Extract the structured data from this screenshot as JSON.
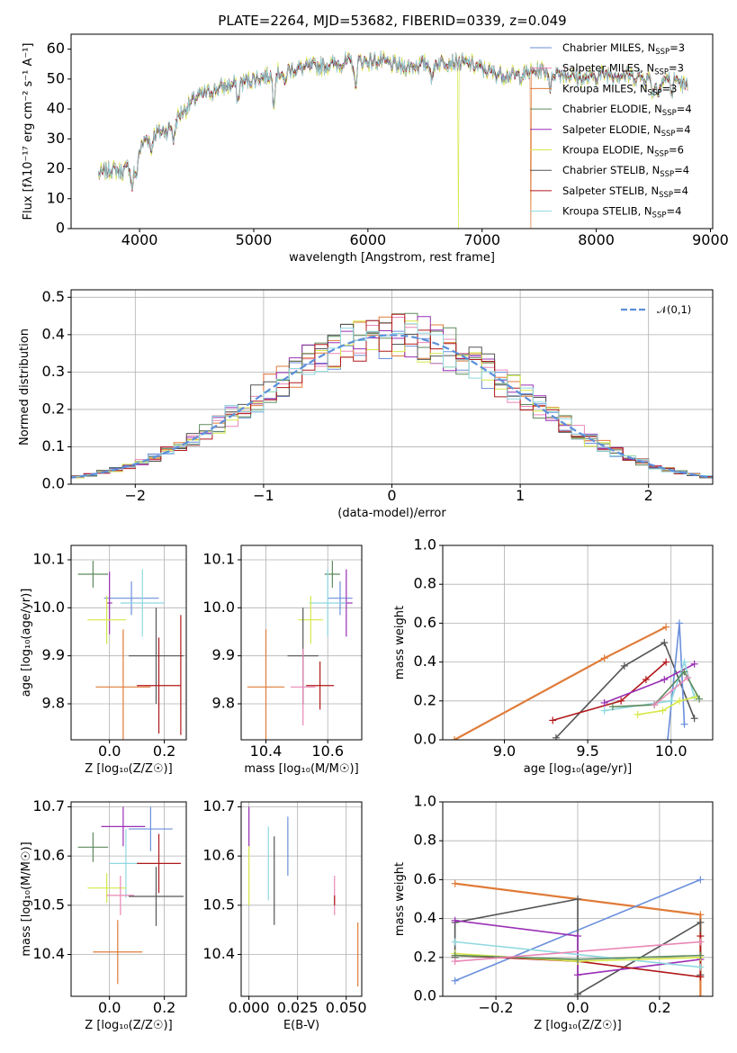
{
  "title": "PLATE=2264, MJD=53682, FIBERID=0339, z=0.049",
  "colors": {
    "Chabrier MILES": "#6a8fdb",
    "Salpeter MILES": "#e987b6",
    "Kroupa MILES": "#e07b39",
    "Chabrier ELODIE": "#5e8a5e",
    "Salpeter ELODIE": "#9a2fb5",
    "Kroupa ELODIE": "#d6e84a",
    "Chabrier STELIB": "#555555",
    "Salpeter STELIB": "#b0181a",
    "Kroupa STELIB": "#8fd8e0",
    "gauss": "#5b8fdb"
  },
  "chart_data": [
    {
      "type": "line",
      "panel": "spectrum",
      "xlabel": "wavelength [Angstrom, rest frame]",
      "ylabel": "Flux [fλ10⁻¹⁷ erg cm⁻² s⁻¹ A⁻¹]",
      "xlim": [
        3400,
        9020
      ],
      "ylim": [
        0,
        65
      ],
      "xticks": [
        4000,
        5000,
        6000,
        7000,
        8000,
        9000
      ],
      "yticks": [
        0,
        10,
        20,
        30,
        40,
        50,
        60
      ],
      "envelope_x": [
        3640,
        3750,
        3850,
        3950,
        4050,
        4150,
        4250,
        4350,
        4500,
        4700,
        4900,
        5100,
        5300,
        5500,
        5700,
        5900,
        6100,
        6300,
        6500,
        6700,
        6900,
        7100,
        7300,
        7500,
        7700,
        7900,
        8100,
        8300,
        8500,
        8700,
        8800
      ],
      "envelope_y": [
        18,
        20,
        19,
        22,
        30,
        32,
        33,
        38,
        44,
        47,
        49,
        51,
        53,
        54,
        55,
        56,
        56,
        54,
        55,
        56,
        55,
        52,
        51,
        53,
        52,
        50,
        52,
        51,
        50,
        50,
        47
      ],
      "series": [
        {
          "name": "Chabrier MILES, N$_{SSP}$=3",
          "legend_main": "Chabrier MILES, N",
          "legend_sub": "SSP",
          "legend_tail": "=3"
        },
        {
          "name": "Salpeter MILES, N$_{SSP}$=3",
          "legend_main": "Salpeter MILES, N",
          "legend_sub": "SSP",
          "legend_tail": "=3"
        },
        {
          "name": "Kroupa MILES, N$_{SSP}$=3",
          "legend_main": "Kroupa MILES, N",
          "legend_sub": "SSP",
          "legend_tail": "=3",
          "drop_to_zero_x": 7420
        },
        {
          "name": "Chabrier ELODIE, N$_{SSP}$=4",
          "legend_main": "Chabrier ELODIE, N",
          "legend_sub": "SSP",
          "legend_tail": "=4"
        },
        {
          "name": "Salpeter ELODIE, N$_{SSP}$=4",
          "legend_main": "Salpeter ELODIE, N",
          "legend_sub": "SSP",
          "legend_tail": "=4"
        },
        {
          "name": "Kroupa ELODIE, N$_{SSP}$=6",
          "legend_main": "Kroupa ELODIE, N",
          "legend_sub": "SSP",
          "legend_tail": "=6",
          "drop_to_zero_x": 6790
        },
        {
          "name": "Chabrier STELIB, N$_{SSP}$=4",
          "legend_main": "Chabrier STELIB, N",
          "legend_sub": "SSP",
          "legend_tail": "=4"
        },
        {
          "name": "Salpeter STELIB, N$_{SSP}$=4",
          "legend_main": "Salpeter STELIB, N",
          "legend_sub": "SSP",
          "legend_tail": "=4"
        },
        {
          "name": "Kroupa STELIB, N$_{SSP}$=4",
          "legend_main": "Kroupa STELIB, N",
          "legend_sub": "SSP",
          "legend_tail": "=4"
        }
      ]
    },
    {
      "type": "bar",
      "panel": "residuals",
      "xlabel": "(data-model)/error",
      "ylabel": "Normed distribution",
      "xlim": [
        -2.5,
        2.5
      ],
      "ylim": [
        0,
        0.52
      ],
      "xticks": [
        -2,
        -1,
        0,
        1,
        2
      ],
      "yticks": [
        0.0,
        0.1,
        0.2,
        0.3,
        0.4,
        0.5
      ],
      "bin_width": 0.1,
      "legend": "𝒩(0,1)",
      "gauss_mean": 0,
      "gauss_sigma": 1
    },
    {
      "type": "scatter",
      "panel": "age-metallicity",
      "xlabel": "Z [log₁₀(Z/Z☉)]",
      "ylabel": "age  [log₁₀(age/yr)]",
      "xlim": [
        -0.14,
        0.28
      ],
      "ylim": [
        9.725,
        10.13
      ],
      "xticks": [
        0.0,
        0.2
      ],
      "yticks": [
        9.8,
        9.9,
        10.0,
        10.1
      ],
      "points": [
        {
          "series": "Chabrier ELODIE",
          "x": -0.06,
          "y": 10.07,
          "xerr": 0.055,
          "yerr": 0.028
        },
        {
          "series": "Chabrier MILES",
          "x": 0.08,
          "y": 10.02,
          "xerr": 0.1,
          "yerr": 0.035
        },
        {
          "series": "Kroupa STELIB",
          "x": 0.12,
          "y": 10.01,
          "xerr": 0.08,
          "yerr": 0.07
        },
        {
          "series": "Salpeter ELODIE",
          "x": 0.0,
          "y": 10.01,
          "xerr": 0.01,
          "yerr": 0.065
        },
        {
          "series": "Kroupa ELODIE",
          "x": -0.01,
          "y": 9.975,
          "xerr": 0.07,
          "yerr": 0.05
        },
        {
          "series": "Chabrier STELIB",
          "x": 0.17,
          "y": 9.9,
          "xerr": 0.1,
          "yerr": 0.1
        },
        {
          "series": "Kroupa MILES",
          "x": 0.05,
          "y": 9.835,
          "xerr": 0.1,
          "yerr": 0.12
        },
        {
          "series": "Salpeter STELIB",
          "x": 0.18,
          "y": 9.838,
          "xerr": 0.08,
          "yerr": 0.1
        },
        {
          "series": "Salpeter STELIB",
          "x": 0.26,
          "y": 9.86,
          "xerr": 0.0,
          "yerr": 0.125
        }
      ]
    },
    {
      "type": "scatter",
      "panel": "age-mass",
      "xlabel": "mass [log₁₀(M/M☉)]",
      "ylabel": "",
      "xlim": [
        10.32,
        10.71
      ],
      "ylim": [
        9.725,
        10.13
      ],
      "xticks": [
        10.4,
        10.6
      ],
      "yticks": [
        9.8,
        9.9,
        10.0,
        10.1
      ],
      "points": [
        {
          "series": "Chabrier ELODIE",
          "x": 10.615,
          "y": 10.07,
          "xerr": 0.025,
          "yerr": 0.028
        },
        {
          "series": "Chabrier MILES",
          "x": 10.64,
          "y": 10.02,
          "xerr": 0.04,
          "yerr": 0.035
        },
        {
          "series": "Salpeter ELODIE",
          "x": 10.66,
          "y": 10.01,
          "xerr": 0.02,
          "yerr": 0.07
        },
        {
          "series": "Kroupa STELIB",
          "x": 10.6,
          "y": 10.01,
          "xerr": 0.06,
          "yerr": 0.07
        },
        {
          "series": "Kroupa ELODIE",
          "x": 10.545,
          "y": 9.975,
          "xerr": 0.04,
          "yerr": 0.05
        },
        {
          "series": "Chabrier STELIB",
          "x": 10.52,
          "y": 9.9,
          "xerr": 0.05,
          "yerr": 0.1
        },
        {
          "series": "Kroupa MILES",
          "x": 10.4,
          "y": 9.835,
          "xerr": 0.06,
          "yerr": 0.12
        },
        {
          "series": "Salpeter MILES",
          "x": 10.52,
          "y": 9.835,
          "xerr": 0.04,
          "yerr": 0.08
        },
        {
          "series": "Salpeter STELIB",
          "x": 10.575,
          "y": 9.838,
          "xerr": 0.045,
          "yerr": 0.05
        }
      ]
    },
    {
      "type": "line",
      "panel": "mass-weight-vs-age",
      "xlabel": "age  [log₁₀(age/yr)]",
      "ylabel": "mass weight",
      "xlim": [
        8.63,
        10.25
      ],
      "ylim": [
        0,
        1
      ],
      "xticks": [
        9.0,
        9.5,
        10.0
      ],
      "yticks": [
        0.0,
        0.2,
        0.4,
        0.6,
        0.8,
        1.0
      ],
      "series": [
        {
          "name": "Kroupa MILES",
          "x": [
            8.7,
            9.6,
            9.97
          ],
          "y": [
            0.0,
            0.42,
            0.58
          ]
        },
        {
          "name": "Chabrier STELIB",
          "x": [
            9.31,
            9.72,
            9.96,
            10.14
          ],
          "y": [
            0.01,
            0.38,
            0.5,
            0.11
          ]
        },
        {
          "name": "Salpeter STELIB",
          "x": [
            9.29,
            9.7,
            9.85,
            9.97
          ],
          "y": [
            0.1,
            0.2,
            0.31,
            0.4
          ]
        },
        {
          "name": "Chabrier MILES",
          "x": [
            9.98,
            10.05,
            10.08
          ],
          "y": [
            0.0,
            0.6,
            0.08
          ]
        },
        {
          "name": "Salpeter ELODIE",
          "x": [
            9.6,
            9.96,
            10.14
          ],
          "y": [
            0.19,
            0.31,
            0.39
          ]
        },
        {
          "name": "Kroupa STELIB",
          "x": [
            9.6,
            10.0,
            10.08,
            10.14
          ],
          "y": [
            0.15,
            0.2,
            0.4,
            0.22
          ]
        },
        {
          "name": "Kroupa ELODIE",
          "x": [
            9.8,
            9.95,
            10.05,
            10.15
          ],
          "y": [
            0.13,
            0.15,
            0.2,
            0.22
          ]
        },
        {
          "name": "Chabrier ELODIE",
          "x": [
            9.65,
            9.9,
            10.08,
            10.17
          ],
          "y": [
            0.17,
            0.18,
            0.35,
            0.21
          ]
        },
        {
          "name": "Salpeter MILES",
          "x": [
            9.9,
            10.1
          ],
          "y": [
            0.18,
            0.32
          ]
        }
      ]
    },
    {
      "type": "scatter",
      "panel": "mass-metallicity",
      "xlabel": "Z [log₁₀(Z/Z☉)]",
      "ylabel": "mass [log₁₀(M/M☉)]",
      "xlim": [
        -0.14,
        0.28
      ],
      "ylim": [
        10.315,
        10.71
      ],
      "xticks": [
        0.0,
        0.2
      ],
      "yticks": [
        10.4,
        10.5,
        10.6,
        10.7
      ],
      "points": [
        {
          "series": "Salpeter ELODIE",
          "x": 0.05,
          "y": 10.66,
          "xerr": 0.08,
          "yerr": 0.04
        },
        {
          "series": "Chabrier MILES",
          "x": 0.15,
          "y": 10.655,
          "xerr": 0.08,
          "yerr": 0.045
        },
        {
          "series": "Chabrier ELODIE",
          "x": -0.06,
          "y": 10.618,
          "xerr": 0.055,
          "yerr": 0.03
        },
        {
          "series": "Kroupa STELIB",
          "x": 0.06,
          "y": 10.585,
          "xerr": 0.06,
          "yerr": 0.07
        },
        {
          "series": "Salpeter STELIB",
          "x": 0.18,
          "y": 10.585,
          "xerr": 0.08,
          "yerr": 0.06
        },
        {
          "series": "Kroupa ELODIE",
          "x": -0.01,
          "y": 10.535,
          "xerr": 0.07,
          "yerr": 0.03
        },
        {
          "series": "Salpeter MILES",
          "x": 0.04,
          "y": 10.52,
          "xerr": 0.05,
          "yerr": 0.04
        },
        {
          "series": "Chabrier STELIB",
          "x": 0.17,
          "y": 10.518,
          "xerr": 0.1,
          "yerr": 0.06
        },
        {
          "series": "Kroupa MILES",
          "x": 0.03,
          "y": 10.405,
          "xerr": 0.09,
          "yerr": 0.065
        }
      ]
    },
    {
      "type": "scatter",
      "panel": "mass-extinction",
      "xlabel": "E(B-V)",
      "ylabel": "",
      "xlim": [
        -0.004,
        0.058
      ],
      "ylim": [
        10.315,
        10.71
      ],
      "xticks": [
        0.0,
        0.025,
        0.05
      ],
      "xtick_labels": [
        "0.000",
        "0.025",
        "0.050"
      ],
      "yticks": [
        10.4,
        10.5,
        10.6,
        10.7
      ],
      "points": [
        {
          "series": "Salpeter ELODIE",
          "x": 0.0,
          "y": 10.66,
          "xerr": 0.0,
          "yerr": 0.04
        },
        {
          "series": "Kroupa ELODIE",
          "x": 0.0,
          "y": 10.56,
          "xerr": 0.0,
          "yerr": 0.06
        },
        {
          "series": "Kroupa STELIB",
          "x": 0.01,
          "y": 10.585,
          "xerr": 0.0,
          "yerr": 0.075
        },
        {
          "series": "Chabrier STELIB",
          "x": 0.013,
          "y": 10.55,
          "xerr": 0.0,
          "yerr": 0.09
        },
        {
          "series": "Chabrier MILES",
          "x": 0.02,
          "y": 10.62,
          "xerr": 0.0,
          "yerr": 0.06
        },
        {
          "series": "Salpeter MILES",
          "x": 0.044,
          "y": 10.52,
          "xerr": 0.0,
          "yerr": 0.04
        },
        {
          "series": "Salpeter STELIB",
          "x": 0.044,
          "y": 10.51,
          "xerr": 0.0,
          "yerr": 0.01
        },
        {
          "series": "Kroupa MILES",
          "x": 0.056,
          "y": 10.4,
          "xerr": 0.0,
          "yerr": 0.065
        }
      ]
    },
    {
      "type": "line",
      "panel": "mass-weight-vs-metallicity",
      "xlabel": "Z [log₁₀(Z/Z☉)]",
      "ylabel": "mass weight",
      "xlim": [
        -0.33,
        0.33
      ],
      "ylim": [
        0,
        1
      ],
      "xticks": [
        -0.2,
        0.0,
        0.2
      ],
      "yticks": [
        0.0,
        0.2,
        0.4,
        0.6,
        0.8,
        1.0
      ],
      "series": [
        {
          "name": "Kroupa MILES",
          "x": [
            -0.3,
            0.3,
            0.3
          ],
          "y": [
            0.58,
            0.42,
            0.0
          ]
        },
        {
          "name": "Chabrier MILES",
          "x": [
            -0.3,
            0.3
          ],
          "y": [
            0.08,
            0.6
          ]
        },
        {
          "name": "Chabrier STELIB",
          "x": [
            -0.3,
            -0.3,
            0.0,
            0.0,
            0.3,
            0.3
          ],
          "y": [
            0.2,
            0.38,
            0.5,
            0.01,
            0.38,
            0.11
          ]
        },
        {
          "name": "Salpeter ELODIE",
          "x": [
            -0.3,
            0.0,
            0.0,
            0.3
          ],
          "y": [
            0.39,
            0.31,
            0.11,
            0.19
          ]
        },
        {
          "name": "Salpeter STELIB",
          "x": [
            -0.3,
            0.0,
            0.3,
            0.3
          ],
          "y": [
            0.21,
            0.18,
            0.1,
            0.31
          ]
        },
        {
          "name": "Kroupa STELIB",
          "x": [
            -0.3,
            0.3
          ],
          "y": [
            0.28,
            0.15
          ]
        },
        {
          "name": "Kroupa ELODIE",
          "x": [
            -0.3,
            0.0,
            0.3
          ],
          "y": [
            0.22,
            0.18,
            0.2
          ]
        },
        {
          "name": "Chabrier ELODIE",
          "x": [
            -0.3,
            0.0,
            0.3
          ],
          "y": [
            0.21,
            0.19,
            0.21
          ]
        },
        {
          "name": "Salpeter MILES",
          "x": [
            -0.3,
            0.3
          ],
          "y": [
            0.18,
            0.28
          ]
        }
      ]
    }
  ]
}
